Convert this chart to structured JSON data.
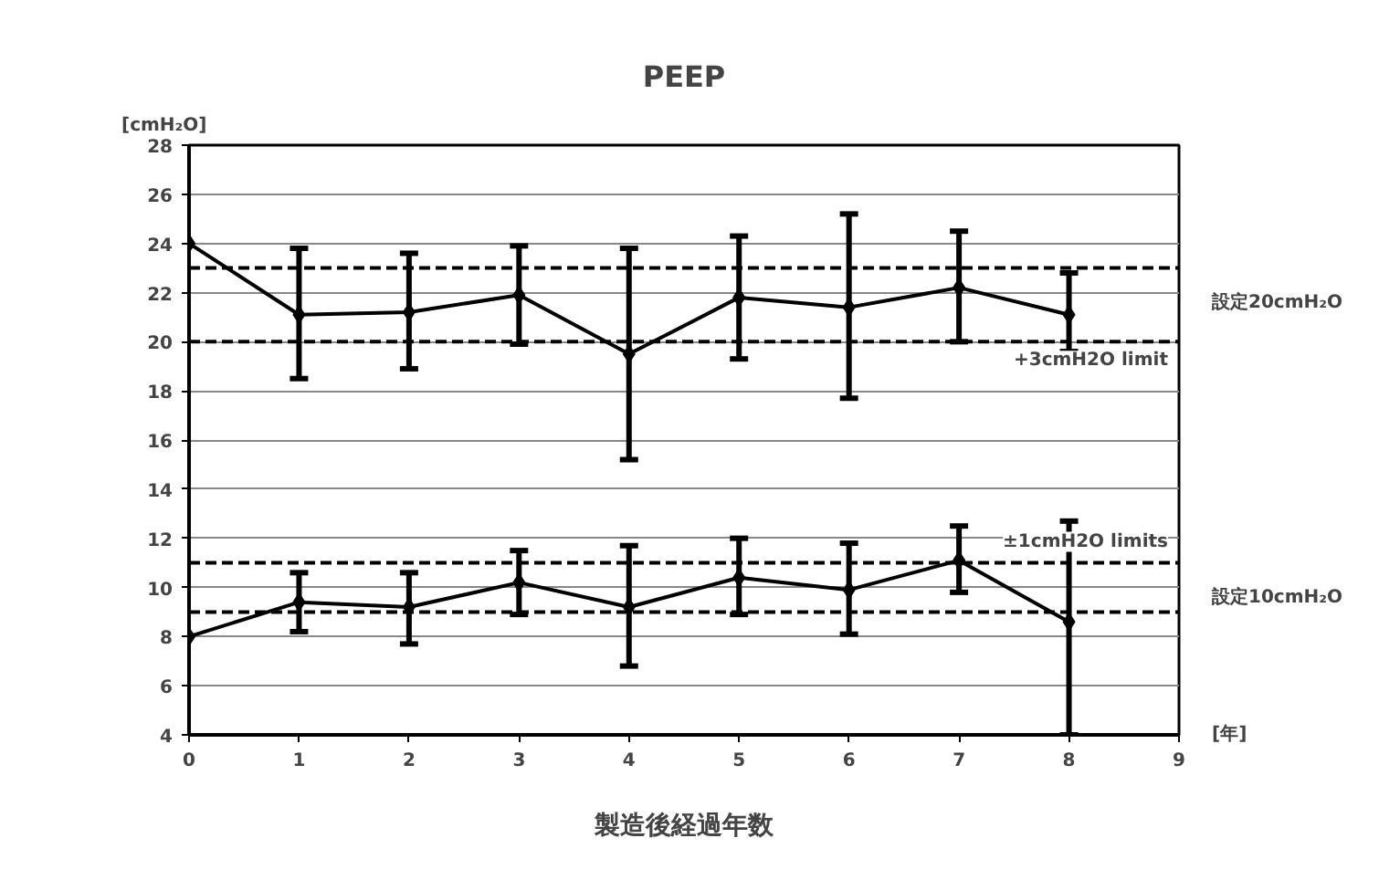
{
  "chart_data": {
    "type": "line",
    "title": "PEEP",
    "xlabel": "製造後経過年数",
    "ylabel": "[cmH₂O]",
    "x": [
      0,
      1,
      2,
      3,
      4,
      5,
      6,
      7,
      8
    ],
    "xlim": [
      0,
      9
    ],
    "xticks": [
      0,
      1,
      2,
      3,
      4,
      5,
      6,
      7,
      8,
      9
    ],
    "ylim": [
      4,
      28
    ],
    "yticks": [
      4,
      6,
      8,
      10,
      12,
      14,
      16,
      18,
      20,
      22,
      24,
      26,
      28
    ],
    "grid": "y",
    "marker": "diamond",
    "line_style": "solid",
    "legend": false,
    "series": [
      {
        "name": "設定20cmH₂O",
        "color": "#000000",
        "values": [
          24,
          21.1,
          21.2,
          21.9,
          19.5,
          21.8,
          21.4,
          22.2,
          21.1
        ],
        "errors": [
          null,
          [
            18.5,
            23.8
          ],
          [
            18.9,
            23.6
          ],
          [
            19.9,
            23.9
          ],
          [
            15.2,
            23.8
          ],
          [
            19.3,
            24.3
          ],
          [
            17.7,
            25.2
          ],
          [
            20.0,
            24.5
          ],
          [
            19.6,
            22.8
          ]
        ]
      },
      {
        "name": "設定10cmH₂O",
        "color": "#000000",
        "values": [
          8,
          9.4,
          9.2,
          10.2,
          9.2,
          10.4,
          9.9,
          11.1,
          8.6
        ],
        "errors": [
          null,
          [
            8.2,
            10.6
          ],
          [
            7.7,
            10.6
          ],
          [
            8.9,
            11.5
          ],
          [
            6.8,
            11.7
          ],
          [
            8.9,
            12.0
          ],
          [
            8.1,
            11.8
          ],
          [
            9.8,
            12.5
          ],
          [
            4.0,
            12.7
          ]
        ]
      }
    ],
    "ref_lines": [
      {
        "axis": "y",
        "value": 23,
        "label": null,
        "line_style": "dashed",
        "color": "#000000"
      },
      {
        "axis": "y",
        "value": 20,
        "label": "+3cmH2O limit",
        "line_style": "dashed",
        "color": "#000000"
      },
      {
        "axis": "y",
        "value": 11,
        "label": "±1cmH2O limits",
        "line_style": "dashed",
        "color": "#000000"
      },
      {
        "axis": "y",
        "value": 9,
        "label": null,
        "line_style": "dashed",
        "color": "#000000"
      }
    ],
    "annotations": [
      "[年]"
    ]
  }
}
